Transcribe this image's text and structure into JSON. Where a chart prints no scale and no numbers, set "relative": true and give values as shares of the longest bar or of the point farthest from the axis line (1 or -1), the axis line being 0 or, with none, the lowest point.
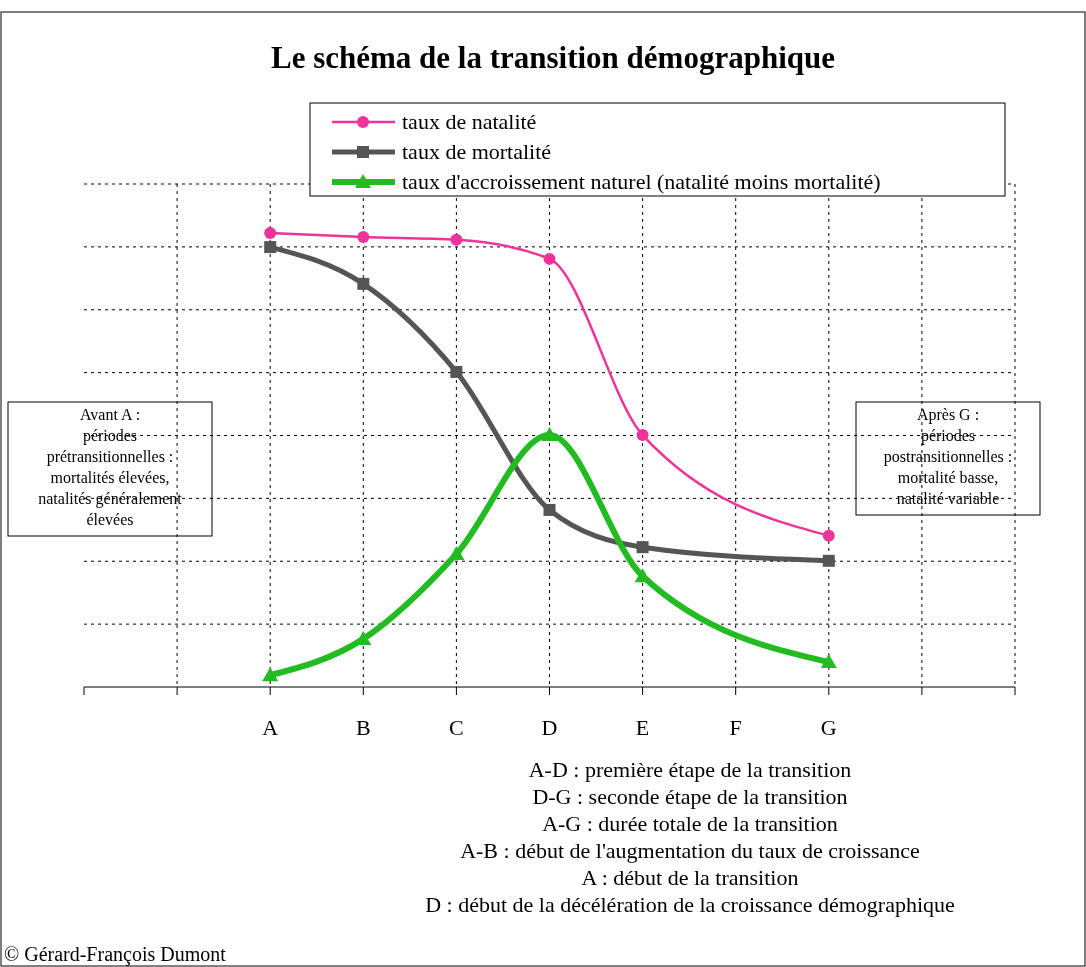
{
  "chart_data": {
    "type": "line",
    "title": "Le schéma de la transition démographique",
    "relative": true,
    "grid": true,
    "legend": "top",
    "categories": [
      null,
      null,
      "A",
      "B",
      "C",
      "D",
      "E",
      "F",
      "G",
      null,
      null
    ],
    "series": [
      {
        "name": "taux de natalité",
        "color": "#ee3399",
        "marker": "circle",
        "values": [
          null,
          null,
          1,
          0.991,
          0.985,
          0.943,
          0.555,
          null,
          0.333,
          null,
          null
        ]
      },
      {
        "name": "taux de mortalité",
        "color": "#555555",
        "marker": "square",
        "values": [
          null,
          null,
          0.969,
          0.888,
          0.694,
          0.39,
          0.308,
          null,
          0.278,
          null,
          null
        ]
      },
      {
        "name": "taux d'accroissement naturel (natalité moins mortalité)",
        "color": "#22bb22",
        "marker": "triangle",
        "values": [
          null,
          null,
          0.026,
          0.106,
          0.293,
          0.555,
          0.244,
          null,
          0.055,
          null,
          null
        ]
      }
    ],
    "annotations": [
      "Avant A :\npériodes\nprétransitionnelles :\nmortalités élevées,\nnatalités généralement\nélevées",
      "Après G :\npériodes\npostransitionnelles :\nmortalité basse,\nnatalité variable",
      "A-D : première étape de la transition",
      "D-G : seconde étape de la transition",
      "A-G : durée totale de la transition",
      "A-B : début de l'augmentation du taux de croissance",
      "A : début de la transition",
      "D : début de la décélération de la croissance démographique",
      "© Gérard-François Dumont"
    ]
  }
}
